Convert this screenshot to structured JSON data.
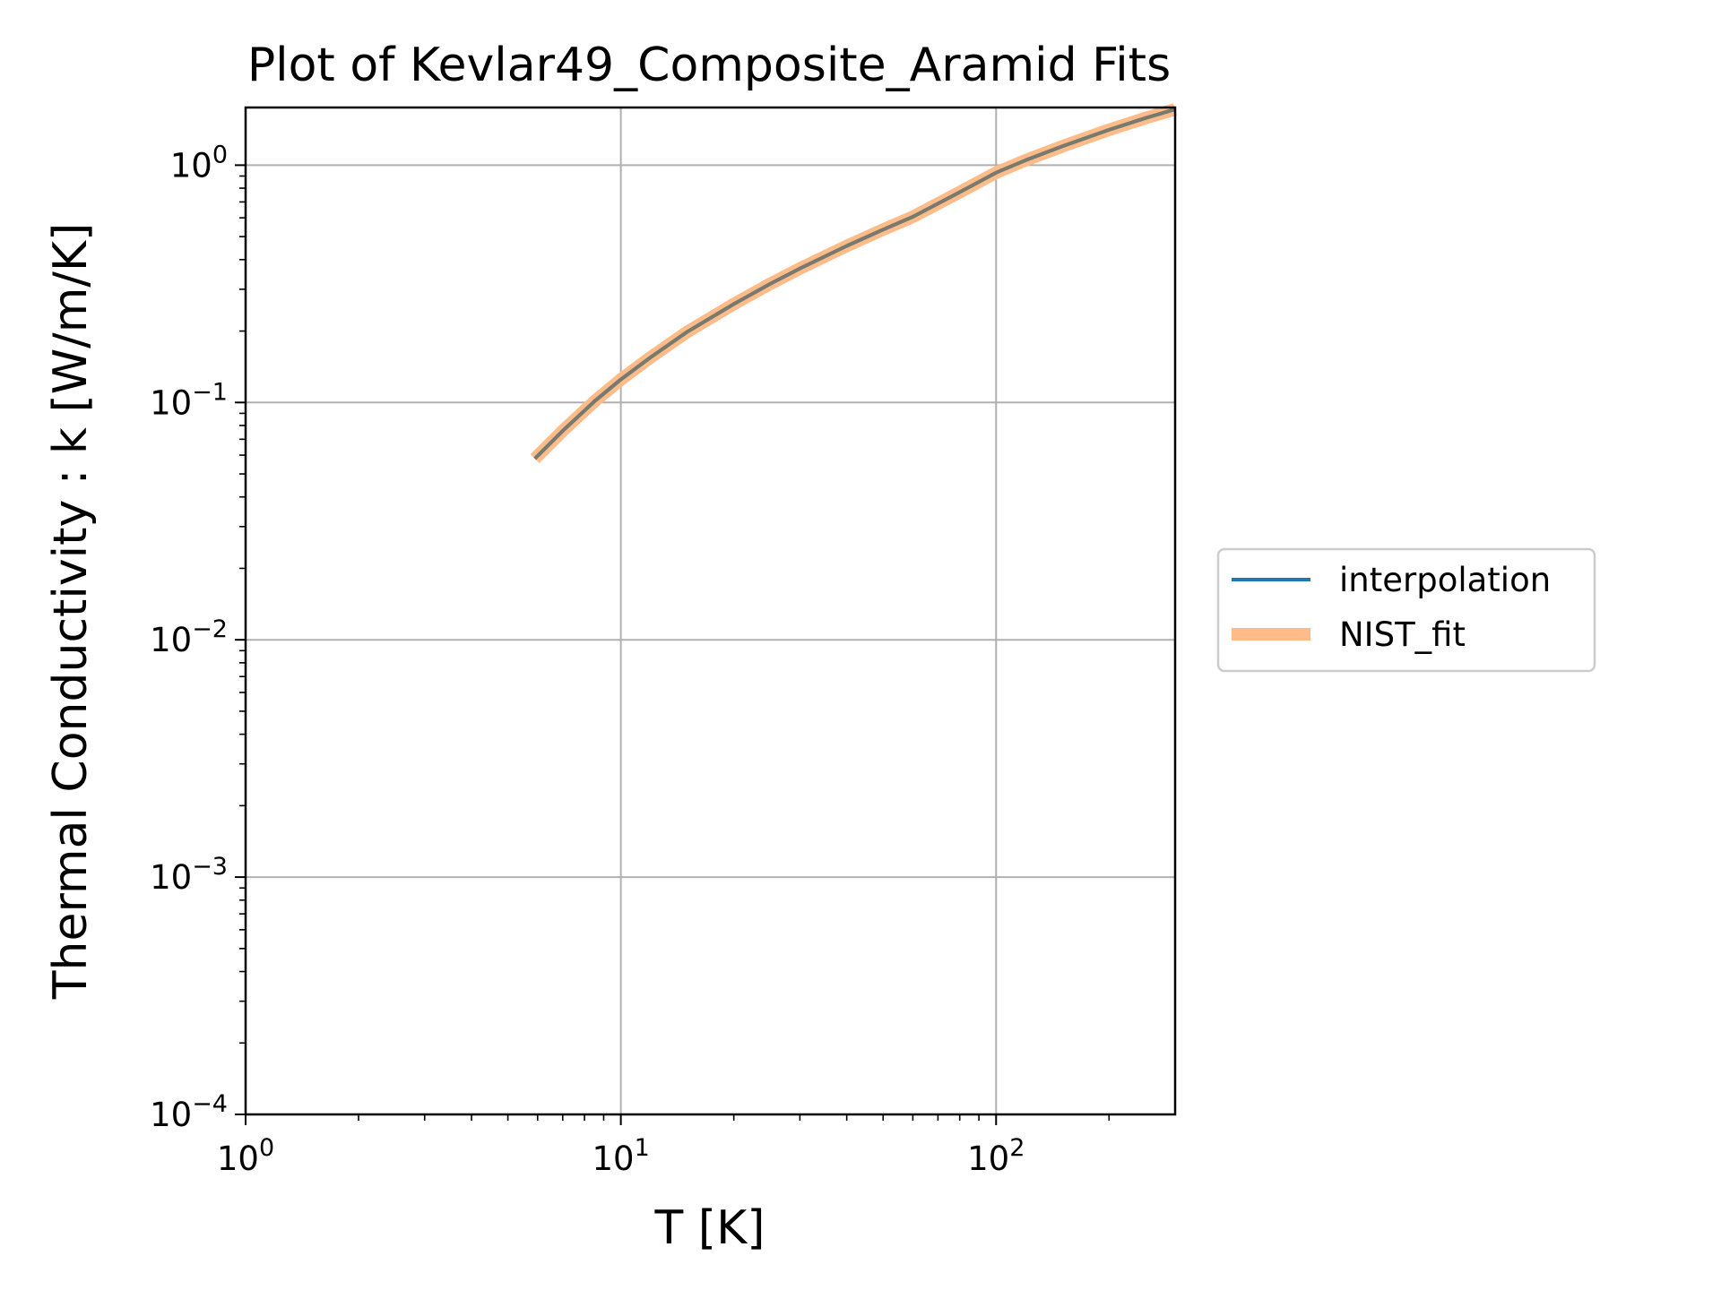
{
  "chart_data": {
    "type": "line",
    "title": "Plot of Kevlar49_Composite_Aramid Fits",
    "xlabel": "T [K]",
    "ylabel": "Thermal Conductivity : k [W/m/K]",
    "xscale": "log",
    "yscale": "log",
    "xlim": [
      1,
      300
    ],
    "ylim": [
      0.0001,
      1.75
    ],
    "grid": true,
    "legend_placement": "outside right",
    "x_ticks": [
      {
        "value": 1,
        "base": "10",
        "exp": "0"
      },
      {
        "value": 10,
        "base": "10",
        "exp": "1"
      },
      {
        "value": 100,
        "base": "10",
        "exp": "2"
      }
    ],
    "y_ticks": [
      {
        "value": 1,
        "base": "10",
        "exp": "0"
      },
      {
        "value": 0.1,
        "base": "10",
        "exp": "−1"
      },
      {
        "value": 0.01,
        "base": "10",
        "exp": "−2"
      },
      {
        "value": 0.001,
        "base": "10",
        "exp": "−3"
      },
      {
        "value": 0.0001,
        "base": "10",
        "exp": "−4"
      }
    ],
    "x": [
      5.9,
      7,
      8.5,
      10,
      12,
      15,
      20,
      25,
      30,
      40,
      50,
      60,
      80,
      100,
      120,
      150,
      200,
      250,
      300
    ],
    "series": [
      {
        "name": "interpolation",
        "color": "#1f77b4",
        "values": [
          0.058,
          0.076,
          0.101,
          0.125,
          0.155,
          0.198,
          0.26,
          0.316,
          0.367,
          0.457,
          0.535,
          0.606,
          0.77,
          0.93,
          1.05,
          1.2,
          1.41,
          1.58,
          1.72
        ]
      },
      {
        "name": "NIST_fit",
        "color": "#ffbb88",
        "values": [
          0.058,
          0.076,
          0.101,
          0.125,
          0.155,
          0.198,
          0.26,
          0.316,
          0.367,
          0.457,
          0.535,
          0.606,
          0.77,
          0.93,
          1.05,
          1.2,
          1.41,
          1.58,
          1.72
        ]
      }
    ]
  }
}
